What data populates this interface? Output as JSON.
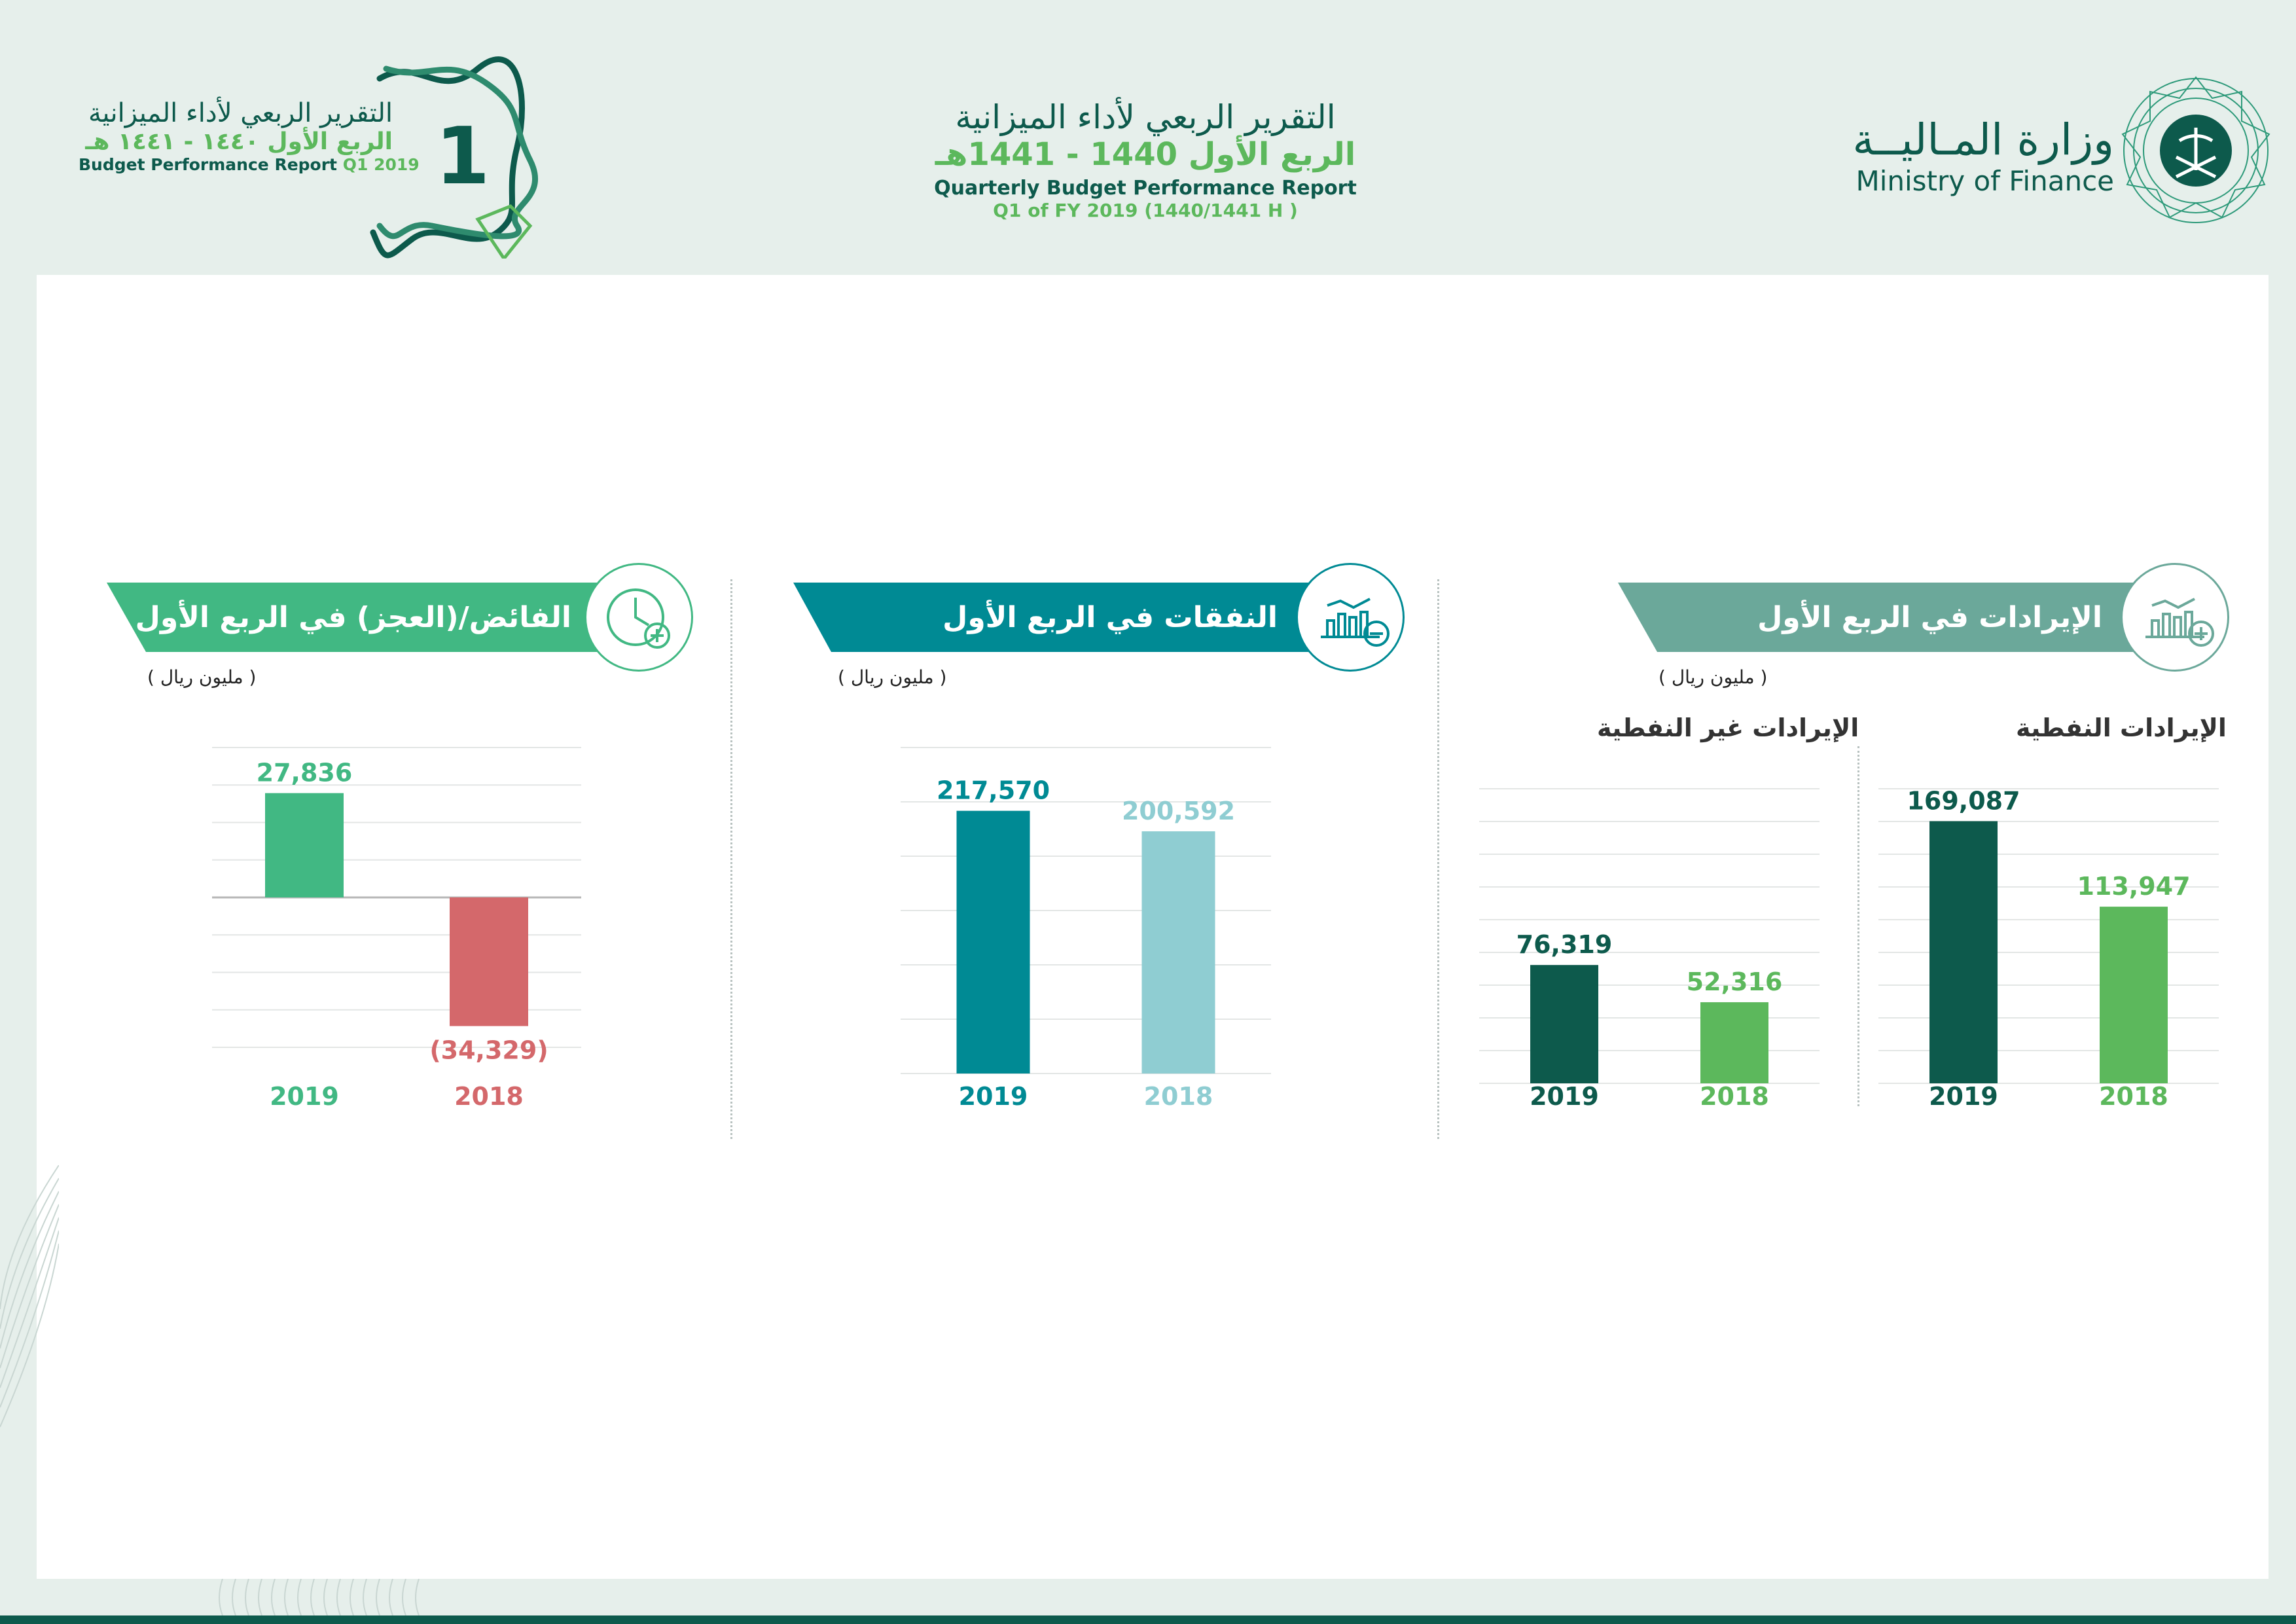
{
  "header": {
    "left_badge": {
      "title_ar": "التقرير الربعي لأداء الميزانية",
      "quarter_ar": "الربع الأول ١٤٤٠ - ١٤٤١ هـ",
      "title_en": "Budget Performance Report",
      "q_label": "Q1 2019",
      "number": "1"
    },
    "center": {
      "title_ar": "التقرير الربعي لأداء الميزانية",
      "quarter_ar": "الربع الأول 1440 - 1441هـ",
      "title_en": "Quarterly Budget Performance Report",
      "subtitle_en": "Q1 of FY 2019 (1440/1441 H )"
    },
    "ministry": {
      "name_ar": "وزارة المـاليــة",
      "name_en": "Ministry of Finance"
    }
  },
  "sections": {
    "revenue": {
      "title": "الإيرادات في الربع الأول",
      "unit": "( مليون ريال )",
      "oil_title": "الإيرادات النفطية",
      "nonoil_title": "الإيرادات غير النفطية"
    },
    "expenditure": {
      "title": "النفقات في الربع الأول",
      "unit": "( مليون ريال )"
    },
    "surplus": {
      "title": "الفائض/(العجز) في الربع الأول",
      "unit": "( مليون ريال )"
    }
  },
  "colors": {
    "dark_green": "#0d5a4c",
    "light_green": "#5cb85c",
    "teal": "#008a94",
    "light_teal": "#8fcdd2",
    "mint": "#41b883",
    "red": "#d4686b",
    "revenue_ribbon": "#6ba89a"
  },
  "chart_data": [
    {
      "type": "bar",
      "title": "الإيرادات النفطية",
      "categories": [
        "2019",
        "2018"
      ],
      "values": [
        169087,
        113947
      ],
      "value_labels": [
        "169,087",
        "113,947"
      ],
      "colors": [
        "#0d5a4c",
        "#5cb85c"
      ],
      "ylim": [
        0,
        190000
      ],
      "grid": true
    },
    {
      "type": "bar",
      "title": "الإيرادات غير النفطية",
      "categories": [
        "2019",
        "2018"
      ],
      "values": [
        76319,
        52316
      ],
      "value_labels": [
        "76,319",
        "52,316"
      ],
      "colors": [
        "#0d5a4c",
        "#5cb85c"
      ],
      "ylim": [
        0,
        190000
      ],
      "grid": true
    },
    {
      "type": "bar",
      "title": "النفقات في الربع الأول",
      "categories": [
        "2019",
        "2018"
      ],
      "values": [
        217570,
        200592
      ],
      "value_labels": [
        "217,570",
        "200,592"
      ],
      "colors": [
        "#008a94",
        "#8fcdd2"
      ],
      "ylim": [
        0,
        270000
      ],
      "grid": true
    },
    {
      "type": "bar",
      "title": "الفائض/(العجز) في الربع الأول",
      "categories": [
        "2019",
        "2018"
      ],
      "values": [
        27836,
        -34329
      ],
      "value_labels": [
        "27,836",
        "(34,329)"
      ],
      "colors": [
        "#41b883",
        "#d4686b"
      ],
      "ylim": [
        -40000,
        40000
      ],
      "grid": true
    }
  ]
}
